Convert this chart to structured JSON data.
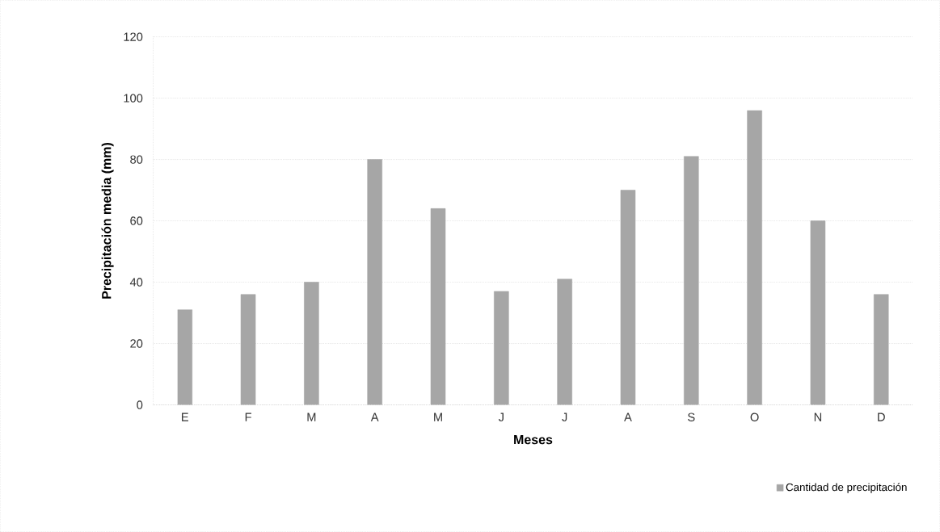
{
  "chart_data": {
    "type": "bar",
    "xlabel": "Meses",
    "ylabel": "Precipitación media (mm)",
    "categories": [
      "E",
      "F",
      "M",
      "A",
      "M",
      "J",
      "J",
      "A",
      "S",
      "O",
      "N",
      "D"
    ],
    "series": [
      {
        "name": "Cantidad de precipitación",
        "color": "#a6a6a6",
        "values": [
          31,
          36,
          40,
          80,
          64,
          37,
          41,
          70,
          81,
          96,
          60,
          36
        ]
      }
    ],
    "ylim": [
      0,
      120
    ],
    "yticks": [
      0,
      20,
      40,
      60,
      80,
      100,
      120
    ],
    "grid": "y",
    "legend": "bottom right"
  }
}
